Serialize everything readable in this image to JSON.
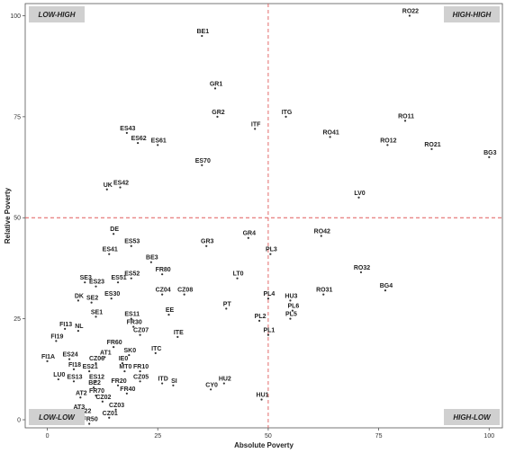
{
  "chart_data": {
    "type": "scatter",
    "xlabel": "Absolute Poverty",
    "ylabel": "Relative Poverty",
    "xlim": [
      -5,
      103
    ],
    "ylim": [
      -2,
      103
    ],
    "x_ticks": [
      0,
      25,
      50,
      75,
      100
    ],
    "y_ticks": [
      0,
      25,
      50,
      75,
      100
    ],
    "reference_lines": {
      "x": 50,
      "y": 50
    },
    "grid": false,
    "quadrant_labels": {
      "top_left": "LOW-HIGH",
      "top_right": "HIGH-HIGH",
      "bottom_left": "LOW-LOW",
      "bottom_right": "HIGH-LOW"
    },
    "colors": {
      "reference_line": "#e05a5a",
      "point": "#333333",
      "quadrant_box": "#d0d0d0"
    },
    "points": [
      {
        "label": "RO22",
        "x": 82,
        "y": 100
      },
      {
        "label": "BE1",
        "x": 35,
        "y": 95
      },
      {
        "label": "GR1",
        "x": 38,
        "y": 82
      },
      {
        "label": "GR2",
        "x": 38.5,
        "y": 75
      },
      {
        "label": "ITG",
        "x": 54,
        "y": 75
      },
      {
        "label": "RO11",
        "x": 81,
        "y": 74
      },
      {
        "label": "ITF",
        "x": 47,
        "y": 72
      },
      {
        "label": "ES43",
        "x": 18,
        "y": 71
      },
      {
        "label": "RO41",
        "x": 64,
        "y": 70
      },
      {
        "label": "ES62",
        "x": 20.5,
        "y": 68.5
      },
      {
        "label": "ES61",
        "x": 25,
        "y": 68
      },
      {
        "label": "RO12",
        "x": 77,
        "y": 68
      },
      {
        "label": "RO21",
        "x": 87,
        "y": 67
      },
      {
        "label": "BG3",
        "x": 100,
        "y": 65
      },
      {
        "label": "ES70",
        "x": 35,
        "y": 63
      },
      {
        "label": "UK",
        "x": 13.5,
        "y": 57
      },
      {
        "label": "ES42",
        "x": 16.5,
        "y": 57.5
      },
      {
        "label": "LV0",
        "x": 70.5,
        "y": 55
      },
      {
        "label": "DE",
        "x": 15,
        "y": 46
      },
      {
        "label": "GR4",
        "x": 45.5,
        "y": 45
      },
      {
        "label": "RO42",
        "x": 62,
        "y": 45.5
      },
      {
        "label": "ES53",
        "x": 19,
        "y": 43
      },
      {
        "label": "GR3",
        "x": 36,
        "y": 43
      },
      {
        "label": "ES41",
        "x": 14,
        "y": 41
      },
      {
        "label": "PL3",
        "x": 50.5,
        "y": 41
      },
      {
        "label": "BE3",
        "x": 23.5,
        "y": 39
      },
      {
        "label": "RO32",
        "x": 71,
        "y": 36.5
      },
      {
        "label": "FR80",
        "x": 26,
        "y": 36
      },
      {
        "label": "ES52",
        "x": 19,
        "y": 35
      },
      {
        "label": "LT0",
        "x": 43,
        "y": 35
      },
      {
        "label": "SE3",
        "x": 8.5,
        "y": 34
      },
      {
        "label": "ES51",
        "x": 16,
        "y": 34
      },
      {
        "label": "ES23",
        "x": 11,
        "y": 33
      },
      {
        "label": "BG4",
        "x": 76.5,
        "y": 32
      },
      {
        "label": "CZ04",
        "x": 26,
        "y": 31
      },
      {
        "label": "CZ08",
        "x": 31,
        "y": 31
      },
      {
        "label": "ES30",
        "x": 14.5,
        "y": 30
      },
      {
        "label": "DK",
        "x": 7,
        "y": 29.5
      },
      {
        "label": "SE2",
        "x": 10,
        "y": 29
      },
      {
        "label": "PL4",
        "x": 50,
        "y": 30
      },
      {
        "label": "HU3",
        "x": 55,
        "y": 29.5
      },
      {
        "label": "RO31",
        "x": 62.5,
        "y": 31
      },
      {
        "label": "PT",
        "x": 40.5,
        "y": 27.5
      },
      {
        "label": "PL6",
        "x": 55.5,
        "y": 27
      },
      {
        "label": "SE1",
        "x": 11,
        "y": 25.5
      },
      {
        "label": "ES11",
        "x": 19,
        "y": 25
      },
      {
        "label": "EE",
        "x": 27.5,
        "y": 26
      },
      {
        "label": "PL2",
        "x": 48,
        "y": 24.5
      },
      {
        "label": "PL5",
        "x": 55,
        "y": 25
      },
      {
        "label": "FR30",
        "x": 19.5,
        "y": 23
      },
      {
        "label": "FI13",
        "x": 4,
        "y": 22.5
      },
      {
        "label": "NL",
        "x": 7,
        "y": 22
      },
      {
        "label": "CZ07",
        "x": 21,
        "y": 21
      },
      {
        "label": "PL1",
        "x": 50,
        "y": 21
      },
      {
        "label": "ITE",
        "x": 29.5,
        "y": 20.5
      },
      {
        "label": "FI19",
        "x": 2,
        "y": 19.5
      },
      {
        "label": "FR60",
        "x": 15,
        "y": 18
      },
      {
        "label": "SK0",
        "x": 18.5,
        "y": 16
      },
      {
        "label": "ITC",
        "x": 24.5,
        "y": 16.5
      },
      {
        "label": "AT1",
        "x": 13,
        "y": 15.5
      },
      {
        "label": "ES24",
        "x": 5,
        "y": 15
      },
      {
        "label": "CZ06",
        "x": 11,
        "y": 14
      },
      {
        "label": "IE0",
        "x": 17,
        "y": 14
      },
      {
        "label": "FI1A",
        "x": 0,
        "y": 14.5
      },
      {
        "label": "FI18",
        "x": 6,
        "y": 12.5
      },
      {
        "label": "ES21",
        "x": 9.5,
        "y": 12
      },
      {
        "label": "MT0",
        "x": 17.5,
        "y": 12
      },
      {
        "label": "FR10",
        "x": 21,
        "y": 12
      },
      {
        "label": "LU0",
        "x": 2.5,
        "y": 10
      },
      {
        "label": "ES13",
        "x": 6,
        "y": 9.5
      },
      {
        "label": "ES12",
        "x": 11,
        "y": 9.5
      },
      {
        "label": "CZ05",
        "x": 21,
        "y": 9.5
      },
      {
        "label": "FR20",
        "x": 16,
        "y": 8.5
      },
      {
        "label": "ITD",
        "x": 26,
        "y": 9
      },
      {
        "label": "SI",
        "x": 28.5,
        "y": 8.5
      },
      {
        "label": "BE2",
        "x": 10.5,
        "y": 8
      },
      {
        "label": "HU2",
        "x": 40,
        "y": 9
      },
      {
        "label": "CY0",
        "x": 37,
        "y": 7.5
      },
      {
        "label": "FR40",
        "x": 18,
        "y": 6.5
      },
      {
        "label": "FR70",
        "x": 11,
        "y": 6
      },
      {
        "label": "AT2",
        "x": 7.5,
        "y": 5.5
      },
      {
        "label": "CZ02",
        "x": 12.5,
        "y": 4.5
      },
      {
        "label": "HU1",
        "x": 48.5,
        "y": 5
      },
      {
        "label": "AT3",
        "x": 7,
        "y": 2
      },
      {
        "label": "CZ03",
        "x": 15.5,
        "y": 2.5
      },
      {
        "label": "ES22",
        "x": 8,
        "y": 1
      },
      {
        "label": "CZ01",
        "x": 14,
        "y": 0.5
      },
      {
        "label": "FR50",
        "x": 9.5,
        "y": -1
      }
    ]
  }
}
